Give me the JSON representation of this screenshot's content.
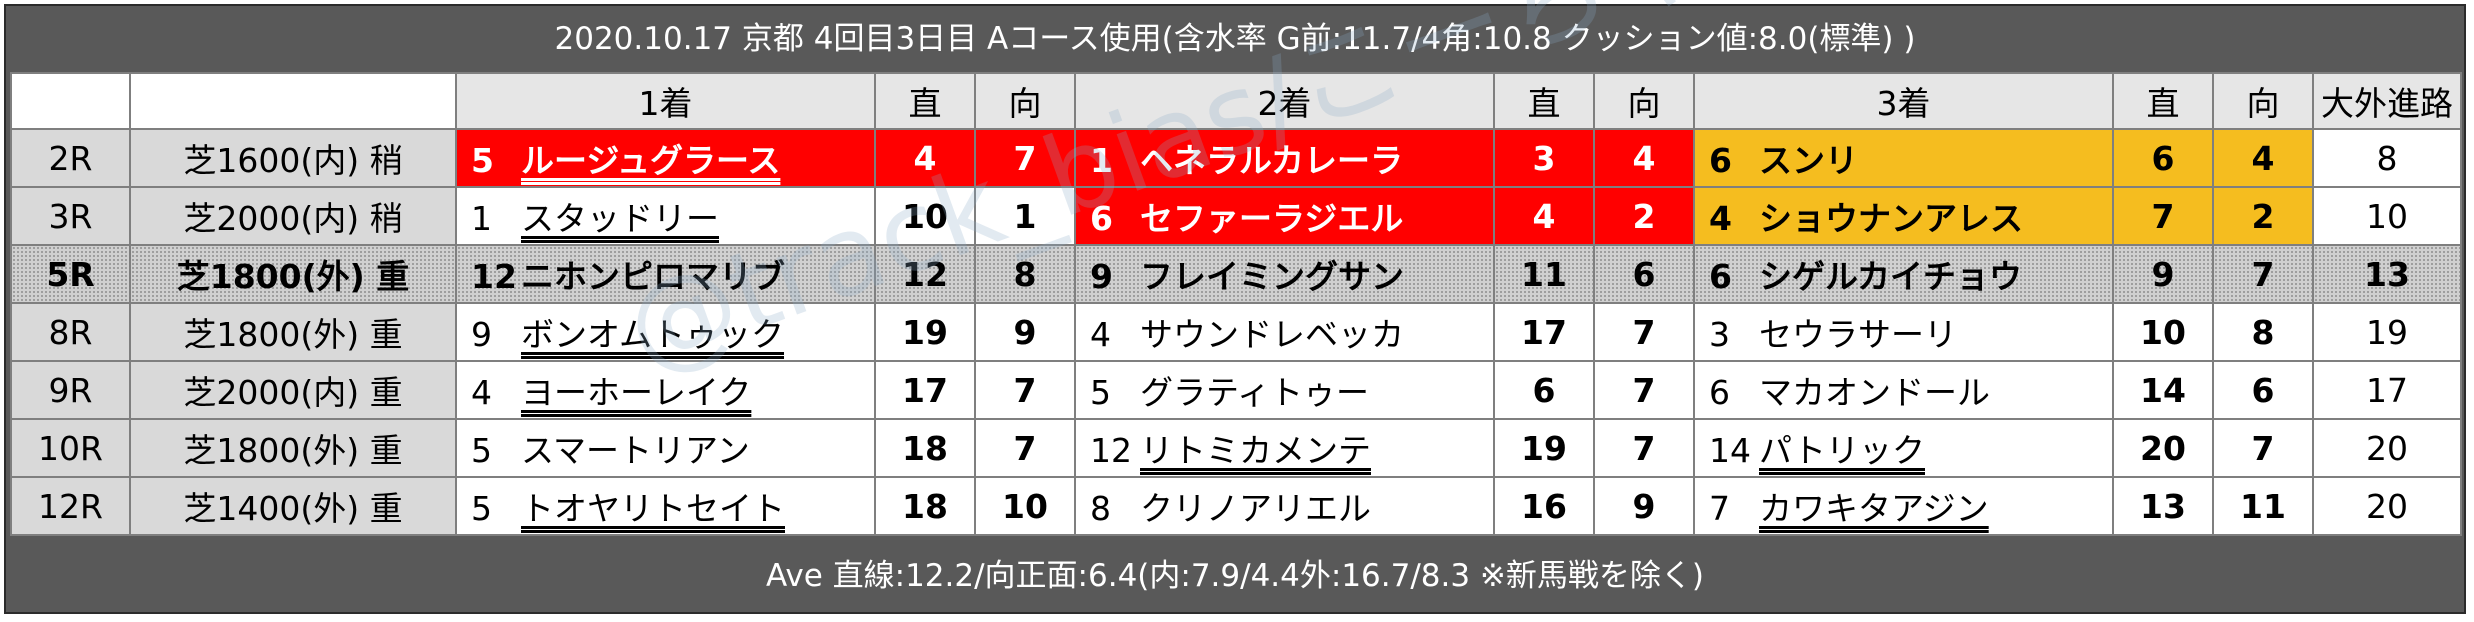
{
  "title": "2020.10.17 京都 4回目3日目 Aコース使用(含水率 G前:11.7/4角:10.8 クッション値:8.0(標準) )",
  "headers": {
    "first": "1着",
    "second": "2着",
    "third": "3着",
    "straight": "直",
    "backstretch": "向",
    "outside": "大外進路"
  },
  "rows": [
    {
      "race": "2R",
      "cond": "芝1600(内) 稍",
      "w1": {
        "n": "5",
        "name": "ルージュグラース",
        "ul": true,
        "s": "4",
        "b": "7",
        "style": "red"
      },
      "w2": {
        "n": "1",
        "name": "ヘネラルカレーラ",
        "ul": false,
        "s": "3",
        "b": "4",
        "style": "red"
      },
      "w3": {
        "n": "6",
        "name": "スンリ",
        "ul": false,
        "s": "6",
        "b": "4",
        "style": "yellow"
      },
      "out": "8"
    },
    {
      "race": "3R",
      "cond": "芝2000(内) 稍",
      "w1": {
        "n": "1",
        "name": "スタッドリー",
        "ul": true,
        "s": "10",
        "b": "1",
        "style": "plain"
      },
      "w2": {
        "n": "6",
        "name": "セファーラジエル",
        "ul": false,
        "s": "4",
        "b": "2",
        "style": "red"
      },
      "w3": {
        "n": "4",
        "name": "ショウナンアレス",
        "ul": false,
        "s": "7",
        "b": "2",
        "style": "yellow"
      },
      "out": "10"
    },
    {
      "race": "5R",
      "cond": "芝1800(外) 重",
      "w1": {
        "n": "12",
        "name": "ニホンピロマリブ",
        "ul": false,
        "s": "12",
        "b": "8",
        "style": "dotted"
      },
      "w2": {
        "n": "9",
        "name": "フレイミングサン",
        "ul": false,
        "s": "11",
        "b": "6",
        "style": "dotted"
      },
      "w3": {
        "n": "6",
        "name": "シゲルカイチョウ",
        "ul": false,
        "s": "9",
        "b": "7",
        "style": "dotted"
      },
      "out": "13"
    },
    {
      "race": "8R",
      "cond": "芝1800(外) 重",
      "w1": {
        "n": "9",
        "name": "ボンオムトゥック",
        "ul": true,
        "s": "19",
        "b": "9",
        "style": "plain"
      },
      "w2": {
        "n": "4",
        "name": "サウンドレベッカ",
        "ul": false,
        "s": "17",
        "b": "7",
        "style": "plain"
      },
      "w3": {
        "n": "3",
        "name": "セウラサーリ",
        "ul": false,
        "s": "10",
        "b": "8",
        "style": "plain"
      },
      "out": "19"
    },
    {
      "race": "9R",
      "cond": "芝2000(内) 重",
      "w1": {
        "n": "4",
        "name": "ヨーホーレイク",
        "ul": true,
        "s": "17",
        "b": "7",
        "style": "plain"
      },
      "w2": {
        "n": "5",
        "name": "グラティトゥー",
        "ul": false,
        "s": "6",
        "b": "7",
        "style": "plain"
      },
      "w3": {
        "n": "6",
        "name": "マカオンドール",
        "ul": false,
        "s": "14",
        "b": "6",
        "style": "plain"
      },
      "out": "17"
    },
    {
      "race": "10R",
      "cond": "芝1800(外) 重",
      "w1": {
        "n": "5",
        "name": "スマートリアン",
        "ul": false,
        "s": "18",
        "b": "7",
        "style": "plain"
      },
      "w2": {
        "n": "12",
        "name": "リトミカメンテ",
        "ul": true,
        "s": "19",
        "b": "7",
        "style": "plain"
      },
      "w3": {
        "n": "14",
        "name": "パトリック",
        "ul": true,
        "s": "20",
        "b": "7",
        "style": "plain"
      },
      "out": "20"
    },
    {
      "race": "12R",
      "cond": "芝1400(外) 重",
      "w1": {
        "n": "5",
        "name": "トオヤリトセイト",
        "ul": true,
        "s": "18",
        "b": "10",
        "style": "plain"
      },
      "w2": {
        "n": "8",
        "name": "クリノアリエル",
        "ul": false,
        "s": "16",
        "b": "9",
        "style": "plain"
      },
      "w3": {
        "n": "7",
        "name": "カワキタアジン",
        "ul": true,
        "s": "13",
        "b": "11",
        "style": "plain"
      },
      "out": "20"
    }
  ],
  "footer": "Ave 直線:12.2/向正面:6.4(内:7.9/4.4外:16.7/8.3 ※新馬戦を除く)",
  "watermark": "@track_bias/こーちゃん",
  "colors": {
    "red": "#ff0000",
    "yellow": "#f5bd1f",
    "frame": "#595959"
  }
}
